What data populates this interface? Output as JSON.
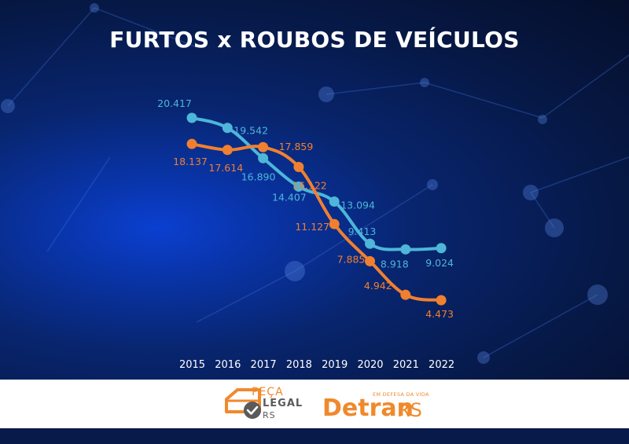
{
  "title": "FURTOS x ROUBOS DE VEÍCULOS",
  "colors": {
    "furtos": "#4db6d9",
    "roubos": "#f0802f",
    "background": "#08256f",
    "brand_orange": "#f0892c"
  },
  "chart_data": {
    "type": "line",
    "title": "FURTOS x ROUBOS DE VEÍCULOS",
    "xlabel": "",
    "ylabel": "",
    "grid": false,
    "x": [
      "2015",
      "2016",
      "2017",
      "2018",
      "2019",
      "2020",
      "2021",
      "2022"
    ],
    "series": [
      {
        "color": "#4db6d9",
        "values": [
          20417,
          19542,
          16890,
          14407,
          13094,
          9413,
          8918,
          9024
        ],
        "labels": [
          "20.417",
          "19.542",
          "16.890",
          "14.407",
          "13.094",
          "9.413",
          "8.918",
          "9.024"
        ]
      },
      {
        "color": "#f0802f",
        "values": [
          18137,
          17614,
          17859,
          16122,
          11127,
          7885,
          4942,
          4473
        ],
        "labels": [
          "18.137",
          "17.614",
          "17.859",
          "16.122",
          "11.127",
          "7.885",
          "4.942",
          "4.473"
        ]
      }
    ]
  },
  "footer": {
    "peca_legal": {
      "line1": "PEÇA",
      "line2": "LEGAL",
      "line3": "RS"
    },
    "detran": {
      "tagline": "EM DEFESA DA VIDA",
      "word": "Detran",
      "suffix": "RS"
    }
  }
}
